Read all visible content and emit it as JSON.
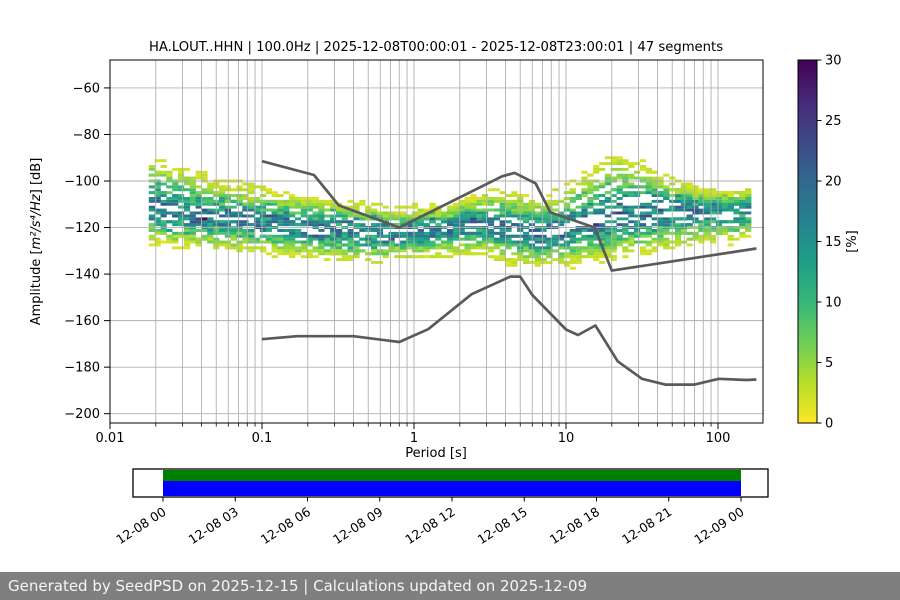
{
  "title": "HA.LOUT..HHN | 100.0Hz | 2025-12-08T00:00:01 - 2025-12-08T23:00:01 | 47 segments",
  "footer": {
    "text": "Generated by SeedPSD on 2025-12-15 | Calculations updated on 2025-12-09",
    "bg": "#7f7f7f",
    "fg": "#f5f5f5"
  },
  "chart_data": {
    "type": "heatmap",
    "subtype": "ppsd-probability-histogram",
    "title": "HA.LOUT..HHN | 100.0Hz | 2025-12-08T00:00:01 - 2025-12-08T23:00:01 | 47 segments",
    "station": "HA.LOUT..HHN",
    "sampling_rate": "100.0Hz",
    "time_range": "2025-12-08T00:00:01 - 2025-12-08T23:00:01",
    "segments": 47,
    "xlabel": "Period [s]",
    "ylabel_parts": [
      "Amplitude [",
      "m²/s⁴/Hz",
      "] [dB]"
    ],
    "xscale": "log",
    "xlim": [
      0.01,
      200
    ],
    "ylim": [
      -204,
      -48
    ],
    "grid": true,
    "grid_color": "#b0b0b0",
    "x_ticks": {
      "values": [
        0.01,
        0.1,
        1,
        10,
        100
      ],
      "labels": [
        "0.01",
        "0.1",
        "1",
        "10",
        "100"
      ]
    },
    "y_ticks": {
      "values": [
        -60,
        -80,
        -100,
        -120,
        -140,
        -160,
        -180,
        -200
      ],
      "labels": [
        "−60",
        "−80",
        "−100",
        "−120",
        "−140",
        "−160",
        "−180",
        "−200"
      ]
    },
    "colorbar": {
      "label": "[%]",
      "min": 0,
      "max": 30,
      "tick_values": [
        0,
        5,
        10,
        15,
        20,
        25,
        30
      ],
      "tick_labels": [
        "0",
        "5",
        "10",
        "15",
        "20",
        "25",
        "30"
      ],
      "colormap": "viridis_r",
      "stops": [
        "#440154",
        "#482878",
        "#3e4989",
        "#31688e",
        "#26828e",
        "#1f9e89",
        "#35b779",
        "#6ece58",
        "#b5de2b",
        "#fde725"
      ]
    },
    "noise_models": {
      "color": "#5a5a5a",
      "high_noise_model": [
        [
          0.1,
          -91.5
        ],
        [
          0.22,
          -97.4
        ],
        [
          0.32,
          -110.5
        ],
        [
          0.8,
          -120.0
        ],
        [
          3.8,
          -98.0
        ],
        [
          4.6,
          -96.5
        ],
        [
          6.3,
          -101.0
        ],
        [
          7.9,
          -113.5
        ],
        [
          15.4,
          -120.0
        ],
        [
          20.0,
          -138.5
        ],
        [
          179.0,
          -129.0
        ]
      ],
      "low_noise_model": [
        [
          0.1,
          -168.0
        ],
        [
          0.17,
          -166.7
        ],
        [
          0.4,
          -166.7
        ],
        [
          0.8,
          -169.2
        ],
        [
          1.24,
          -163.7
        ],
        [
          2.4,
          -148.6
        ],
        [
          4.3,
          -141.1
        ],
        [
          5.0,
          -141.1
        ],
        [
          6.0,
          -149.0
        ],
        [
          10.0,
          -163.8
        ],
        [
          12.0,
          -166.2
        ],
        [
          15.6,
          -162.1
        ],
        [
          21.9,
          -177.5
        ],
        [
          31.6,
          -185.0
        ],
        [
          45.0,
          -187.5
        ],
        [
          70.0,
          -187.5
        ],
        [
          101.0,
          -185.0
        ],
        [
          154.0,
          -185.5
        ],
        [
          179.0,
          -185.3
        ]
      ]
    },
    "ppsd_cloud": {
      "period_range": [
        0.018,
        179
      ],
      "db_bin": 1.25,
      "peak_probability_pct": 18,
      "envelope_top": [
        [
          0.018,
          -89
        ],
        [
          0.03,
          -94
        ],
        [
          0.05,
          -99
        ],
        [
          0.08,
          -101.5
        ],
        [
          0.13,
          -104
        ],
        [
          0.25,
          -107
        ],
        [
          0.5,
          -110
        ],
        [
          0.9,
          -111.5
        ],
        [
          1.6,
          -110
        ],
        [
          2.6,
          -105.5
        ],
        [
          3.5,
          -103.5
        ],
        [
          5,
          -106
        ],
        [
          7,
          -107
        ],
        [
          10,
          -101
        ],
        [
          14,
          -94.5
        ],
        [
          21,
          -87.5
        ],
        [
          30,
          -90
        ],
        [
          45,
          -97
        ],
        [
          70,
          -102
        ],
        [
          110,
          -104.5
        ],
        [
          179,
          -103.5
        ]
      ],
      "envelope_center": [
        [
          0.018,
          -111
        ],
        [
          0.03,
          -113.5
        ],
        [
          0.06,
          -116
        ],
        [
          0.12,
          -118
        ],
        [
          0.25,
          -120
        ],
        [
          0.5,
          -121.5
        ],
        [
          0.9,
          -121.5
        ],
        [
          1.6,
          -119.5
        ],
        [
          2.8,
          -117
        ],
        [
          4,
          -119
        ],
        [
          6,
          -122
        ],
        [
          9,
          -121.5
        ],
        [
          14,
          -118
        ],
        [
          22,
          -115.5
        ],
        [
          40,
          -113.5
        ],
        [
          80,
          -111.5
        ],
        [
          179,
          -111
        ]
      ],
      "envelope_bottom": [
        [
          0.018,
          -127
        ],
        [
          0.03,
          -128.5
        ],
        [
          0.06,
          -129.5
        ],
        [
          0.12,
          -131.5
        ],
        [
          0.25,
          -133.5
        ],
        [
          0.5,
          -135
        ],
        [
          0.9,
          -133.5
        ],
        [
          1.6,
          -131.5
        ],
        [
          2.8,
          -132
        ],
        [
          4.5,
          -136.5
        ],
        [
          7,
          -137.5
        ],
        [
          12,
          -136
        ],
        [
          20,
          -134.5
        ],
        [
          35,
          -131
        ],
        [
          60,
          -128.5
        ],
        [
          110,
          -126.5
        ],
        [
          179,
          -125
        ]
      ]
    },
    "timebar": {
      "tick_labels": [
        "12-08 00",
        "12-08 03",
        "12-08 06",
        "12-08 09",
        "12-08 12",
        "12-08 15",
        "12-08 18",
        "12-08 21",
        "12-09 00"
      ],
      "coverage_color": "#008000",
      "processed_color": "#0000ff"
    }
  }
}
